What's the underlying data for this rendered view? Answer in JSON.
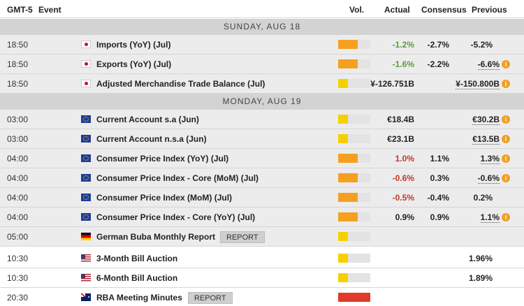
{
  "header": {
    "gmt": "GMT-5",
    "event": "Event",
    "vol": "Vol.",
    "actual": "Actual",
    "consensus": "Consensus",
    "previous": "Previous"
  },
  "colors": {
    "green": "#5a9b3a",
    "red": "#c0392b",
    "black": "#222222",
    "vol_orange": "#f5a020",
    "vol_yellow": "#f5d000",
    "vol_red": "#e03a2a",
    "info": "#f0a020"
  },
  "days": [
    "SUNDAY, AUG 18",
    "MONDAY, AUG 19"
  ],
  "report_label": "REPORT",
  "info_icon": "i",
  "rows": [
    {
      "time": "18:50",
      "flag": "flag-jp",
      "event": "Imports (YoY) (Jul)",
      "vol": 0.6,
      "vol_color": "orange",
      "actual": "-1.2%",
      "actual_color": "green",
      "consensus": "-2.7%",
      "previous": "-5.2%",
      "prev_info": false,
      "prev_dotted": false
    },
    {
      "time": "18:50",
      "flag": "flag-jp",
      "event": "Exports (YoY) (Jul)",
      "vol": 0.6,
      "vol_color": "orange",
      "actual": "-1.6%",
      "actual_color": "green",
      "consensus": "-2.2%",
      "previous": "-6.6%",
      "prev_info": true,
      "prev_dotted": true
    },
    {
      "time": "18:50",
      "flag": "flag-jp",
      "event": "Adjusted Merchandise Trade Balance (Jul)",
      "vol": 0.3,
      "vol_color": "yellow",
      "actual": "¥-126.751B",
      "actual_color": "black",
      "consensus": "",
      "previous": "¥-150.800B",
      "prev_info": true,
      "prev_dotted": true
    },
    {
      "time": "03:00",
      "flag": "flag-eu",
      "event": "Current Account s.a (Jun)",
      "vol": 0.3,
      "vol_color": "yellow",
      "actual": "€18.4B",
      "actual_color": "black",
      "consensus": "",
      "previous": "€30.2B",
      "prev_info": true,
      "prev_dotted": true
    },
    {
      "time": "03:00",
      "flag": "flag-eu",
      "event": "Current Account n.s.a (Jun)",
      "vol": 0.3,
      "vol_color": "yellow",
      "actual": "€23.1B",
      "actual_color": "black",
      "consensus": "",
      "previous": "€13.5B",
      "prev_info": true,
      "prev_dotted": true
    },
    {
      "time": "04:00",
      "flag": "flag-eu",
      "event": "Consumer Price Index (YoY) (Jul)",
      "vol": 0.6,
      "vol_color": "orange",
      "actual": "1.0%",
      "actual_color": "red",
      "consensus": "1.1%",
      "previous": "1.3%",
      "prev_info": true,
      "prev_dotted": true
    },
    {
      "time": "04:00",
      "flag": "flag-eu",
      "event": "Consumer Price Index - Core (MoM) (Jul)",
      "vol": 0.6,
      "vol_color": "orange",
      "actual": "-0.6%",
      "actual_color": "red",
      "consensus": "0.3%",
      "previous": "-0.6%",
      "prev_info": true,
      "prev_dotted": true
    },
    {
      "time": "04:00",
      "flag": "flag-eu",
      "event": "Consumer Price Index (MoM) (Jul)",
      "vol": 0.6,
      "vol_color": "orange",
      "actual": "-0.5%",
      "actual_color": "red",
      "consensus": "-0.4%",
      "previous": "0.2%",
      "prev_info": false,
      "prev_dotted": false
    },
    {
      "time": "04:00",
      "flag": "flag-eu",
      "event": "Consumer Price Index - Core (YoY) (Jul)",
      "vol": 0.6,
      "vol_color": "orange",
      "actual": "0.9%",
      "actual_color": "black",
      "consensus": "0.9%",
      "previous": "1.1%",
      "prev_info": true,
      "prev_dotted": true
    },
    {
      "time": "05:00",
      "flag": "flag-de",
      "event": "German Buba Monthly Report",
      "vol": 0.3,
      "vol_color": "yellow",
      "actual": "",
      "actual_color": "black",
      "consensus": "",
      "previous": "",
      "prev_info": false,
      "prev_dotted": false,
      "report": true
    },
    {
      "time": "10:30",
      "flag": "flag-us",
      "event": "3-Month Bill Auction",
      "vol": 0.3,
      "vol_color": "yellow",
      "actual": "",
      "actual_color": "black",
      "consensus": "",
      "previous": "1.96%",
      "prev_info": false,
      "prev_dotted": false
    },
    {
      "time": "10:30",
      "flag": "flag-us",
      "event": "6-Month Bill Auction",
      "vol": 0.3,
      "vol_color": "yellow",
      "actual": "",
      "actual_color": "black",
      "consensus": "",
      "previous": "1.89%",
      "prev_info": false,
      "prev_dotted": false
    },
    {
      "time": "20:30",
      "flag": "flag-au",
      "event": "RBA Meeting Minutes",
      "vol": 1.0,
      "vol_color": "red",
      "actual": "",
      "actual_color": "black",
      "consensus": "",
      "previous": "",
      "prev_info": false,
      "prev_dotted": false,
      "report": true
    }
  ]
}
